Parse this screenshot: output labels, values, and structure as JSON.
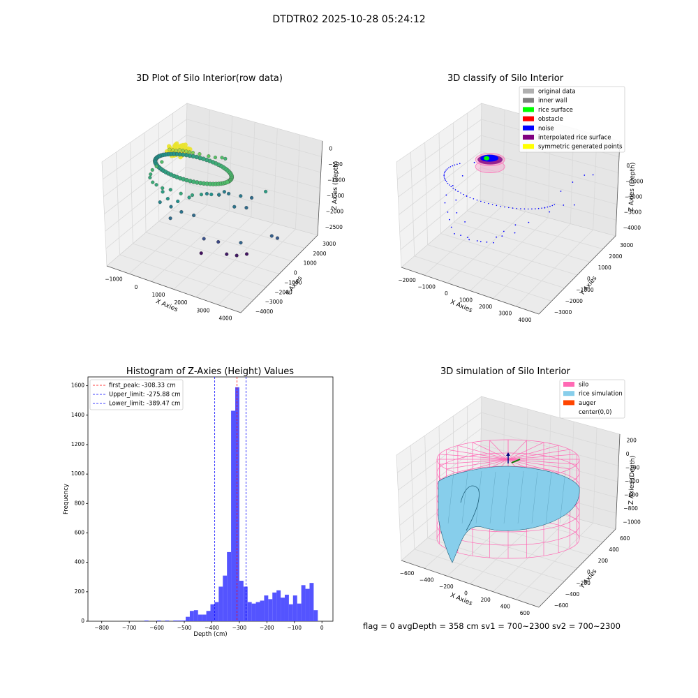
{
  "suptitle": "DTDTR02 2025-10-28 05:24:12",
  "footer": "flag = 0     avgDepth = 358 cm  sv1 = 700~2300  sv2 = 700~2300",
  "colors": {
    "axis": "#000000",
    "pane_left": "#f2f2f2",
    "pane_right": "#e6e6e6",
    "pane_floor": "#ebebeb",
    "grid": "#d9d9d9",
    "histogram_bar": "#4b4bff",
    "first_peak_line": "#ff0000",
    "limit_lines": "#0000ff",
    "silo_mesh": "#ff69b4",
    "rice_surface": "#87ceeb",
    "rice_edge": "#1f5f7a",
    "auger": "#ff4500"
  },
  "chart_data": [
    {
      "id": "raw",
      "type": "scatter3d",
      "title": "3D Plot of Silo Interior(row data)",
      "xlabel": "X Axies",
      "ylabel": "Y Axies",
      "zlabel": "Z Axies (Depth)",
      "xticks": [
        "−1000",
        "0",
        "1000",
        "2000",
        "3000",
        "4000"
      ],
      "yticks": [
        "3000",
        "2000",
        "1000",
        "0",
        "−1000",
        "−2000",
        "−3000",
        "−4000"
      ],
      "zticks": [
        "0",
        "−500",
        "−1000",
        "−1500",
        "−2000",
        "−2500"
      ],
      "colormap": "viridis",
      "points": [
        [
          -600,
          -100,
          -280,
          0.9
        ],
        [
          -500,
          0,
          -300,
          0.9
        ],
        [
          -400,
          100,
          -320,
          0.88
        ],
        [
          -300,
          200,
          -300,
          0.88
        ],
        [
          -200,
          300,
          -320,
          0.85
        ],
        [
          -100,
          400,
          -350,
          0.85
        ],
        [
          0,
          500,
          -380,
          0.82
        ],
        [
          100,
          600,
          -400,
          0.8
        ],
        [
          300,
          800,
          -450,
          0.78
        ],
        [
          600,
          1000,
          -500,
          0.75
        ],
        [
          800,
          1200,
          -550,
          0.72
        ],
        [
          1000,
          1400,
          -560,
          0.7
        ],
        [
          1100,
          1500,
          -600,
          0.65
        ],
        [
          -800,
          -400,
          -700,
          0.7
        ],
        [
          -900,
          -700,
          -800,
          0.68
        ],
        [
          -950,
          -1000,
          -850,
          0.65
        ],
        [
          -900,
          -1300,
          -900,
          0.62
        ],
        [
          -800,
          -1600,
          -900,
          0.6
        ],
        [
          -600,
          -1800,
          -950,
          0.62
        ],
        [
          -400,
          -1900,
          -950,
          0.6
        ],
        [
          -100,
          -2000,
          -950,
          0.6
        ],
        [
          200,
          -1900,
          -950,
          0.58
        ],
        [
          600,
          -1800,
          -1000,
          0.6
        ],
        [
          1000,
          -1600,
          -1000,
          0.58
        ],
        [
          1300,
          -1400,
          -950,
          0.55
        ],
        [
          1600,
          -1100,
          -950,
          0.5
        ],
        [
          1800,
          -800,
          -1000,
          0.45
        ],
        [
          1900,
          -500,
          -950,
          0.42
        ],
        [
          2000,
          -300,
          -1050,
          0.4
        ],
        [
          -300,
          -1500,
          -1300,
          0.55
        ],
        [
          0,
          -1700,
          -1400,
          0.52
        ],
        [
          300,
          -1400,
          -1500,
          0.5
        ],
        [
          700,
          -1200,
          -1300,
          0.55
        ],
        [
          1200,
          -600,
          -1200,
          0.45
        ],
        [
          1500,
          -100,
          -1300,
          0.42
        ],
        [
          2300,
          200,
          -1200,
          0.4
        ],
        [
          2600,
          600,
          -1300,
          0.35
        ],
        [
          2900,
          1300,
          -1200,
          0.55
        ],
        [
          2200,
          -200,
          -1500,
          0.38
        ],
        [
          2500,
          300,
          -1600,
          0.35
        ],
        [
          -500,
          -1300,
          -1800,
          0.45
        ],
        [
          -200,
          -900,
          -2000,
          0.4
        ],
        [
          200,
          -800,
          -2100,
          0.38
        ],
        [
          600,
          -500,
          -2200,
          0.35
        ],
        [
          -100,
          -1200,
          -2300,
          0.35
        ],
        [
          3200,
          1200,
          -2700,
          0.3
        ],
        [
          3400,
          1300,
          -2750,
          0.28
        ],
        [
          2600,
          -500,
          -2600,
          0.32
        ],
        [
          1200,
          -900,
          -2750,
          0.25
        ],
        [
          1600,
          -400,
          -2900,
          0.22
        ],
        [
          2000,
          -500,
          -3200,
          0.08
        ],
        [
          2300,
          -200,
          -3250,
          0.07
        ],
        [
          2600,
          100,
          -3200,
          0.06
        ],
        [
          1000,
          -700,
          -3400,
          0.05
        ]
      ],
      "cluster": [
        -300,
        100,
        -280,
        420
      ]
    },
    {
      "id": "classify",
      "type": "scatter3d",
      "title": "3D classify of Silo Interior",
      "xlabel": "X Axies",
      "ylabel": "Y Axies",
      "zlabel": "Z Axies (Depth)",
      "xticks": [
        "−2000",
        "−1000",
        "0",
        "1000",
        "2000",
        "3000",
        "4000"
      ],
      "yticks": [
        "3000",
        "2000",
        "1000",
        "0",
        "−1000",
        "−2000",
        "−3000"
      ],
      "zticks": [
        "0",
        "−1000",
        "−2000",
        "−3000",
        "−4000"
      ],
      "zticks_hidden": [
        "1000"
      ],
      "legend_position": "upper-right",
      "legend": [
        {
          "label": "original data",
          "color": "#b0b0b0"
        },
        {
          "label": "inner wall",
          "color": "#808080"
        },
        {
          "label": "rice surface",
          "color": "#00ff00"
        },
        {
          "label": "obstacle",
          "color": "#ff0000"
        },
        {
          "label": "noise",
          "color": "#0000ff"
        },
        {
          "label": "interpolated rice surface",
          "color": "#800080"
        },
        {
          "label": "symmetric generated points",
          "color": "#ffff00"
        }
      ],
      "noise_points": [
        [
          -500,
          -300,
          -400
        ],
        [
          -800,
          -800,
          -900
        ],
        [
          -1000,
          -1300,
          -1200
        ],
        [
          -1100,
          -1700,
          -1500
        ],
        [
          -1000,
          -2000,
          -1700
        ],
        [
          -700,
          -2300,
          -1900
        ],
        [
          -500,
          -2500,
          -2100
        ],
        [
          -300,
          -2700,
          -2300
        ],
        [
          -100,
          -2800,
          -2500
        ],
        [
          100,
          -2600,
          -2600
        ],
        [
          400,
          -2400,
          -2800
        ],
        [
          800,
          -2100,
          -2900
        ],
        [
          1200,
          -1700,
          -3000
        ],
        [
          1400,
          -1300,
          -2800
        ],
        [
          1800,
          -900,
          -2700
        ],
        [
          2200,
          -400,
          -2300
        ],
        [
          2600,
          300,
          -1800
        ],
        [
          3000,
          1000,
          -1200
        ],
        [
          3300,
          1500,
          -900
        ],
        [
          3600,
          2000,
          -700
        ],
        [
          3800,
          2400,
          -800
        ],
        [
          -300,
          -1500,
          -2600
        ],
        [
          0,
          -1800,
          -3100
        ],
        [
          300,
          -1500,
          -3300
        ],
        [
          600,
          -1200,
          -3400
        ],
        [
          900,
          -900,
          -3200
        ],
        [
          1100,
          -600,
          -3000
        ],
        [
          1500,
          -300,
          -2700
        ],
        [
          2500,
          900,
          -2300
        ],
        [
          3000,
          2200,
          -2400
        ],
        [
          2800,
          1600,
          -2200
        ],
        [
          -900,
          -1200,
          -1900
        ],
        [
          -600,
          -800,
          -1800
        ],
        [
          -700,
          -1500,
          -2300
        ]
      ],
      "rice_center": [
        0,
        0,
        -300
      ],
      "surface_radius": 650
    },
    {
      "id": "histogram",
      "type": "bar",
      "title": "Histogram of Z-Axies (Height) Values",
      "xlabel": "Depth (cm)",
      "ylabel": "Frequency",
      "xlim": [
        -850,
        40
      ],
      "ylim": [
        0,
        1660
      ],
      "xticks": [
        -800,
        -700,
        -600,
        -500,
        -400,
        -300,
        -200,
        -100,
        0
      ],
      "yticks": [
        0,
        200,
        400,
        600,
        800,
        1000,
        1200,
        1400,
        1600
      ],
      "bin_width": 15,
      "bins_left_edges": [
        -645,
        -630,
        -615,
        -600,
        -585,
        -570,
        -555,
        -540,
        -525,
        -510,
        -495,
        -480,
        -465,
        -450,
        -435,
        -420,
        -405,
        -390,
        -375,
        -360,
        -345,
        -330,
        -315,
        -300,
        -285,
        -270,
        -255,
        -240,
        -225,
        -210,
        -195,
        -180,
        -165,
        -150,
        -135,
        -120,
        -105,
        -90,
        -75,
        -60,
        -45,
        -30,
        -15
      ],
      "values": [
        5,
        0,
        0,
        5,
        0,
        5,
        0,
        5,
        5,
        5,
        30,
        70,
        75,
        45,
        45,
        70,
        115,
        130,
        235,
        310,
        470,
        1430,
        1590,
        275,
        235,
        130,
        120,
        130,
        140,
        175,
        150,
        195,
        210,
        160,
        180,
        115,
        175,
        120,
        245,
        220,
        260,
        75,
        0
      ],
      "vlines": [
        {
          "label": "first_peak: -308.33 cm",
          "x": -308.33,
          "color": "#ff0000"
        },
        {
          "label": "Upper_limit: -275.88 cm",
          "x": -275.88,
          "color": "#0000ff"
        },
        {
          "label": "Lower_limit: -389.47 cm",
          "x": -389.47,
          "color": "#0000ff"
        }
      ],
      "legend_position": "upper-left"
    },
    {
      "id": "simulation",
      "type": "surface3d",
      "title": "3D simulation of Silo Interior",
      "xlabel": "X Axies",
      "ylabel": "Y Axies",
      "zlabel": "Z Axies (Depth)",
      "xticks": [
        "−600",
        "−400",
        "−200",
        "0",
        "200",
        "400",
        "600"
      ],
      "yticks": [
        "600",
        "400",
        "200",
        "0",
        "−200",
        "−400",
        "−600"
      ],
      "zticks": [
        "200",
        "0",
        "−200",
        "−400",
        "−600",
        "−800",
        "−1000"
      ],
      "legend_position": "upper-right",
      "legend": [
        {
          "label": "silo",
          "color": "#ff69b4"
        },
        {
          "label": "rice simulation",
          "color": "#87ceeb"
        },
        {
          "label": "auger",
          "color": "#ff4500"
        },
        {
          "label": "center(0,0)",
          "color": "none"
        }
      ],
      "silo_radius": 700,
      "silo_top": 0,
      "silo_bottom": -1000,
      "avg_surface_depth": -300
    }
  ]
}
